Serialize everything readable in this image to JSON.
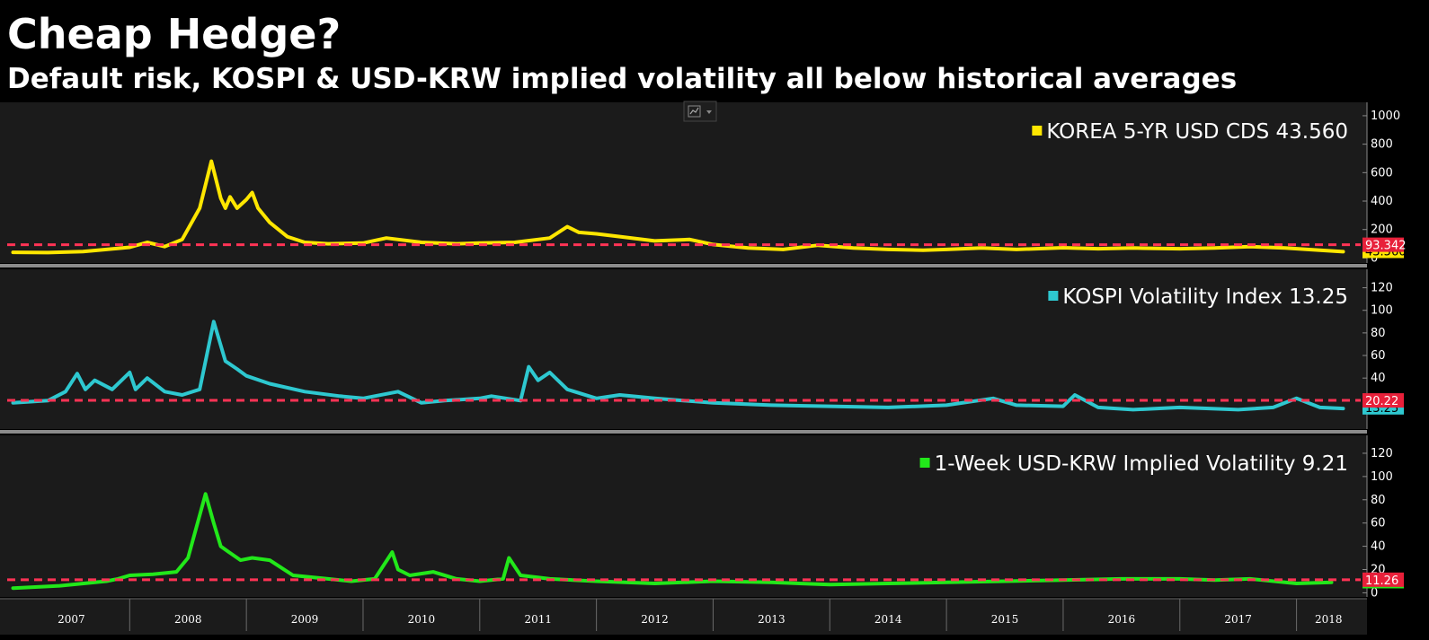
{
  "header": {
    "title": "Cheap Hedge?",
    "subtitle": "Default risk, KOSPI & USD-KRW implied volatility all below historical averages"
  },
  "chart_data": [
    {
      "type": "line",
      "series": [
        {
          "name": "KOREA 5-YR USD CDS",
          "color": "#ffe600"
        }
      ],
      "legend_label": "KOREA 5-YR USD CDS 43.560",
      "ylim": [
        -10,
        1050
      ],
      "yticks": [
        0,
        200,
        400,
        600,
        800,
        1000
      ],
      "ytick_labels": [
        "0",
        "200",
        "400",
        "600",
        "800",
        "1000"
      ],
      "average": {
        "value": 93.342,
        "label": "93.342"
      },
      "last": {
        "value": 43.56,
        "label": "43.560"
      },
      "x": [
        2007.0,
        2007.3,
        2007.6,
        2007.8,
        2008.0,
        2008.15,
        2008.3,
        2008.45,
        2008.6,
        2008.7,
        2008.78,
        2008.82,
        2008.86,
        2008.92,
        2009.0,
        2009.05,
        2009.1,
        2009.2,
        2009.35,
        2009.5,
        2009.7,
        2010.0,
        2010.2,
        2010.5,
        2010.8,
        2011.0,
        2011.3,
        2011.6,
        2011.75,
        2011.85,
        2012.0,
        2012.2,
        2012.5,
        2012.8,
        2013.0,
        2013.3,
        2013.6,
        2013.9,
        2014.2,
        2014.5,
        2014.8,
        2015.0,
        2015.3,
        2015.6,
        2016.0,
        2016.3,
        2016.6,
        2017.0,
        2017.3,
        2017.6,
        2017.9,
        2018.2,
        2018.4
      ],
      "values": [
        40,
        38,
        45,
        60,
        75,
        110,
        80,
        130,
        350,
        680,
        420,
        350,
        430,
        350,
        410,
        460,
        350,
        250,
        150,
        110,
        100,
        105,
        140,
        110,
        100,
        105,
        110,
        140,
        220,
        180,
        170,
        150,
        120,
        130,
        95,
        70,
        60,
        90,
        70,
        60,
        55,
        60,
        70,
        60,
        72,
        65,
        70,
        65,
        70,
        80,
        70,
        55,
        44
      ]
    },
    {
      "type": "line",
      "series": [
        {
          "name": "KOSPI Volatility Index",
          "color": "#2ec8d0"
        }
      ],
      "legend_label": "KOSPI Volatility Index 13.25",
      "ylim": [
        -2,
        130
      ],
      "yticks": [
        20,
        40,
        60,
        80,
        100,
        120
      ],
      "ytick_labels": [
        "20",
        "40",
        "60",
        "80",
        "100",
        "120"
      ],
      "average": {
        "value": 20.22,
        "label": "20.22"
      },
      "last": {
        "value": 13.25,
        "label": "13.25"
      },
      "x": [
        2007.0,
        2007.3,
        2007.45,
        2007.55,
        2007.62,
        2007.7,
        2007.85,
        2008.0,
        2008.05,
        2008.15,
        2008.3,
        2008.45,
        2008.6,
        2008.72,
        2008.82,
        2008.92,
        2009.0,
        2009.2,
        2009.5,
        2009.8,
        2010.0,
        2010.3,
        2010.5,
        2010.7,
        2011.0,
        2011.1,
        2011.35,
        2011.42,
        2011.5,
        2011.6,
        2011.75,
        2012.0,
        2012.2,
        2012.5,
        2013.0,
        2013.5,
        2014.0,
        2014.5,
        2015.0,
        2015.4,
        2015.6,
        2016.0,
        2016.1,
        2016.3,
        2016.6,
        2017.0,
        2017.5,
        2017.8,
        2018.0,
        2018.2,
        2018.4
      ],
      "values": [
        18,
        20,
        28,
        44,
        30,
        38,
        30,
        45,
        30,
        40,
        28,
        25,
        30,
        90,
        55,
        48,
        42,
        35,
        28,
        24,
        22,
        28,
        18,
        20,
        22,
        24,
        20,
        50,
        38,
        45,
        30,
        22,
        25,
        22,
        18,
        16,
        15,
        14,
        16,
        22,
        16,
        15,
        25,
        14,
        12,
        14,
        12,
        14,
        22,
        14,
        13
      ]
    },
    {
      "type": "line",
      "series": [
        {
          "name": "1-Week USD-KRW Implied Volatility",
          "color": "#22e81a"
        }
      ],
      "legend_label": "1-Week USD-KRW Implied Volatility 9.21",
      "ylim": [
        -2,
        130
      ],
      "yticks": [
        0,
        20,
        40,
        60,
        80,
        100,
        120
      ],
      "ytick_labels": [
        "0",
        "20",
        "40",
        "60",
        "80",
        "100",
        "120"
      ],
      "average": {
        "value": 11.26,
        "label": "11.26"
      },
      "last": {
        "value": 9.21,
        "label": "9.21"
      },
      "x": [
        2007.0,
        2007.4,
        2007.8,
        2007.9,
        2008.0,
        2008.2,
        2008.4,
        2008.5,
        2008.65,
        2008.72,
        2008.78,
        2008.85,
        2008.95,
        2009.05,
        2009.2,
        2009.4,
        2009.7,
        2009.9,
        2010.1,
        2010.25,
        2010.3,
        2010.4,
        2010.6,
        2010.8,
        2011.0,
        2011.2,
        2011.25,
        2011.35,
        2011.6,
        2012.0,
        2012.5,
        2013.0,
        2013.5,
        2014.0,
        2014.5,
        2015.0,
        2015.5,
        2016.0,
        2016.5,
        2017.0,
        2017.3,
        2017.6,
        2018.0,
        2018.3
      ],
      "values": [
        4,
        6,
        10,
        12,
        15,
        16,
        18,
        30,
        85,
        60,
        40,
        35,
        28,
        30,
        28,
        15,
        12,
        10,
        12,
        35,
        20,
        15,
        18,
        12,
        10,
        12,
        30,
        15,
        12,
        10,
        8,
        10,
        9,
        7,
        8,
        9,
        10,
        11,
        12,
        12,
        11,
        12,
        8,
        9
      ]
    }
  ],
  "x_axis": {
    "labels": [
      "2007",
      "2008",
      "2009",
      "2010",
      "2011",
      "2012",
      "2013",
      "2014",
      "2015",
      "2016",
      "2017",
      "2018"
    ]
  }
}
